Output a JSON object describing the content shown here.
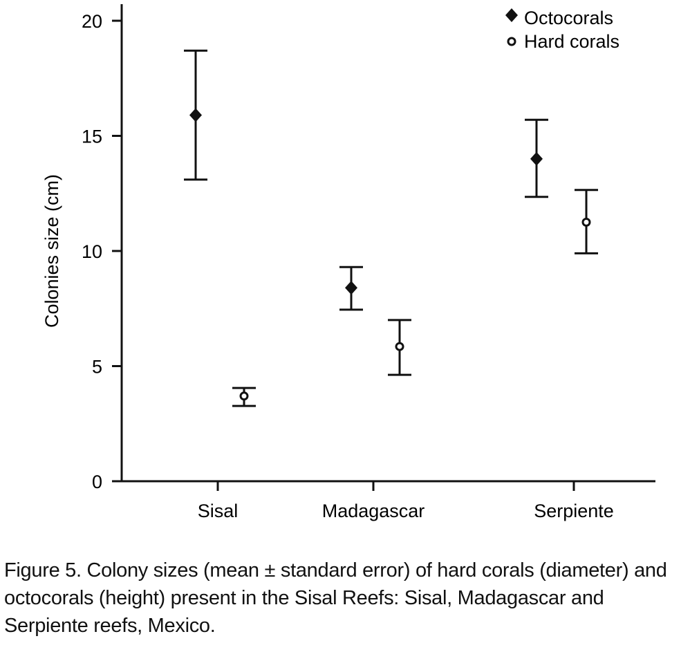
{
  "chart_data": {
    "type": "scatter",
    "title": "",
    "xlabel": "",
    "ylabel": "Colonies size (cm)",
    "ylim": [
      0,
      20
    ],
    "yticks": [
      "0",
      "5",
      "10",
      "15",
      "20"
    ],
    "categories": [
      "Sisal",
      "Madagascar",
      "Serpiente"
    ],
    "legend_position": "top-right",
    "series": [
      {
        "name": "Octocorals",
        "marker": "diamond",
        "values": [
          15.9,
          8.4,
          14.0
        ],
        "err_low": [
          13.1,
          7.45,
          12.35
        ],
        "err_high": [
          18.7,
          9.3,
          15.7
        ]
      },
      {
        "name": "Hard corals",
        "marker": "open-circle",
        "values": [
          3.7,
          5.85,
          11.25
        ],
        "err_low": [
          3.27,
          4.62,
          9.9
        ],
        "err_high": [
          4.05,
          7.0,
          12.65
        ]
      }
    ],
    "color": "#111111"
  },
  "caption": "Figure 5. Colony sizes (mean ± standard error) of hard corals (diameter) and octocorals (height) present in the Sisal Reefs: Sisal, Madagascar and Serpiente reefs, Mexico."
}
